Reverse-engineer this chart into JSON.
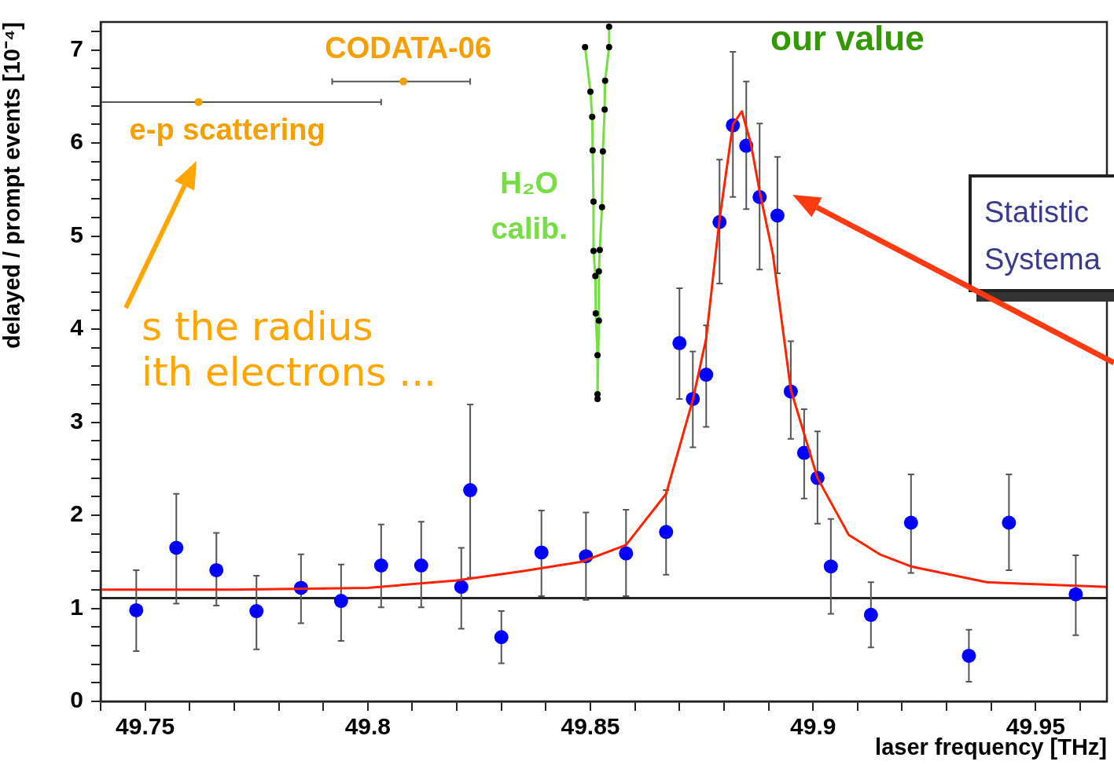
{
  "chart_data": {
    "type": "scatter",
    "xlabel": "laser frequency [THz]",
    "ylabel": "delayed / prompt events [10⁻⁴]",
    "xlim": [
      49.74,
      49.966
    ],
    "ylim": [
      0,
      7.3
    ],
    "xticks": [
      {
        "value": 49.74,
        "label": null
      },
      49.75,
      {
        "value": 49.76,
        "label": null
      },
      {
        "value": 49.77,
        "label": null
      },
      {
        "value": 49.78,
        "label": null
      },
      {
        "value": 49.79,
        "label": null
      },
      49.8,
      {
        "value": 49.81,
        "label": null
      },
      {
        "value": 49.82,
        "label": null
      },
      {
        "value": 49.83,
        "label": null
      },
      {
        "value": 49.84,
        "label": null
      },
      49.85,
      {
        "value": 49.86,
        "label": null
      },
      {
        "value": 49.87,
        "label": null
      },
      {
        "value": 49.88,
        "label": null
      },
      {
        "value": 49.89,
        "label": null
      },
      49.9,
      {
        "value": 49.91,
        "label": null
      },
      {
        "value": 49.92,
        "label": null
      },
      {
        "value": 49.93,
        "label": null
      },
      {
        "value": 49.94,
        "label": null
      },
      49.95,
      {
        "value": 49.96,
        "label": null
      }
    ],
    "yticks": [
      0,
      {
        "value": 0.2,
        "label": null
      },
      {
        "value": 0.4,
        "label": null
      },
      {
        "value": 0.6,
        "label": null
      },
      {
        "value": 0.8,
        "label": null
      },
      1,
      {
        "value": 1.2,
        "label": null
      },
      {
        "value": 1.4,
        "label": null
      },
      {
        "value": 1.6,
        "label": null
      },
      {
        "value": 1.8,
        "label": null
      },
      2,
      {
        "value": 2.2,
        "label": null
      },
      {
        "value": 2.4,
        "label": null
      },
      {
        "value": 2.6,
        "label": null
      },
      {
        "value": 2.8,
        "label": null
      },
      3,
      {
        "value": 3.2,
        "label": null
      },
      {
        "value": 3.4,
        "label": null
      },
      {
        "value": 3.6,
        "label": null
      },
      {
        "value": 3.8,
        "label": null
      },
      4,
      {
        "value": 4.2,
        "label": null
      },
      {
        "value": 4.4,
        "label": null
      },
      {
        "value": 4.6,
        "label": null
      },
      {
        "value": 4.8,
        "label": null
      },
      5,
      {
        "value": 5.2,
        "label": null
      },
      {
        "value": 5.4,
        "label": null
      },
      {
        "value": 5.6,
        "label": null
      },
      {
        "value": 5.8,
        "label": null
      },
      6,
      {
        "value": 6.2,
        "label": null
      },
      {
        "value": 6.4,
        "label": null
      },
      {
        "value": 6.6,
        "label": null
      },
      {
        "value": 6.8,
        "label": null
      },
      7,
      {
        "value": 7.2,
        "label": null
      }
    ],
    "grid": false,
    "legend": false,
    "marker": "circle",
    "ref_lines": [
      {
        "axis": "y",
        "value": 1.11,
        "color": "#222222"
      }
    ],
    "annotations": [
      "s the radius",
      "ith electrons ...",
      "our value",
      "Statistic",
      "Systema"
    ],
    "series": [
      {
        "color": "#0000ff",
        "x": [
          49.748,
          49.757,
          49.766,
          49.775,
          49.785,
          49.794,
          49.803,
          49.812,
          49.821,
          49.823,
          49.83,
          49.839,
          49.849,
          49.858,
          49.867,
          49.87,
          49.873,
          49.876,
          49.879,
          49.882,
          49.885,
          49.888,
          49.892,
          49.895,
          49.898,
          49.901,
          49.904,
          49.913,
          49.922,
          49.935,
          49.944,
          49.959
        ],
        "values": [
          0.98,
          1.65,
          1.41,
          0.97,
          1.22,
          1.08,
          1.46,
          1.46,
          1.23,
          2.27,
          0.69,
          1.6,
          1.56,
          1.59,
          1.82,
          3.85,
          3.25,
          3.51,
          5.15,
          6.19,
          5.97,
          5.42,
          5.22,
          3.33,
          2.67,
          2.4,
          1.45,
          0.93,
          1.92,
          0.49,
          1.92,
          1.15
        ],
        "errors": [
          [
            0.54,
            1.41
          ],
          [
            1.05,
            2.23
          ],
          [
            1.03,
            1.81
          ],
          [
            0.56,
            1.35
          ],
          [
            0.84,
            1.58
          ],
          [
            0.65,
            1.47
          ],
          [
            1.01,
            1.9
          ],
          [
            1.01,
            1.93
          ],
          [
            0.78,
            1.65
          ],
          [
            1.33,
            3.19
          ],
          [
            0.41,
            0.97
          ],
          [
            1.13,
            2.05
          ],
          [
            1.09,
            2.03
          ],
          [
            1.13,
            2.06
          ],
          [
            1.36,
            2.27
          ],
          [
            3.25,
            4.44
          ],
          [
            2.73,
            3.76
          ],
          [
            2.95,
            4.04
          ],
          [
            4.49,
            5.82
          ],
          [
            5.42,
            6.98
          ],
          [
            5.29,
            6.66
          ],
          [
            4.64,
            6.21
          ],
          [
            4.6,
            5.85
          ],
          [
            2.82,
            3.87
          ],
          [
            2.18,
            3.14
          ],
          [
            1.91,
            2.9
          ],
          [
            0.94,
            1.96
          ],
          [
            0.58,
            1.28
          ],
          [
            1.38,
            2.44
          ],
          [
            0.21,
            0.77
          ],
          [
            1.41,
            2.44
          ],
          [
            0.71,
            1.57
          ]
        ]
      },
      {
        "type": "line",
        "color": "#ff2200",
        "marker": "none",
        "x": [
          49.74,
          49.77,
          49.8,
          49.82,
          49.835,
          49.848,
          49.858,
          49.867,
          49.873,
          49.876,
          49.879,
          49.882,
          49.884,
          49.886,
          49.888,
          49.891,
          49.895,
          49.901,
          49.908,
          49.915,
          49.922,
          49.939,
          49.966
        ],
        "values": [
          1.2,
          1.2,
          1.22,
          1.3,
          1.4,
          1.5,
          1.68,
          2.23,
          3.24,
          3.9,
          5.18,
          6.2,
          6.34,
          6.0,
          5.48,
          4.8,
          3.35,
          2.4,
          1.79,
          1.58,
          1.45,
          1.28,
          1.23
        ]
      },
      {
        "type": "scatter",
        "name": "e-p scattering",
        "color": "#f5a000",
        "x": [
          49.762
        ],
        "values": [
          6.44
        ],
        "xerrors": [
          [
            49.74,
            49.803
          ]
        ]
      },
      {
        "type": "scatter",
        "name": "CODATA-06",
        "color": "#f5a000",
        "x": [
          49.808
        ],
        "values": [
          6.66
        ],
        "xerrors": [
          [
            49.792,
            49.823
          ]
        ]
      },
      {
        "type": "line",
        "name": "H₂O calib.",
        "color": "#77dd44",
        "marker": "none",
        "x": [
          49.8488,
          49.85,
          49.8504,
          49.8505,
          49.8507,
          49.8507,
          49.8511,
          49.8512,
          49.8516,
          49.8516,
          49.853,
          49.8542,
          49.8542,
          49.8533,
          49.8532,
          49.8528,
          49.8526,
          49.8521,
          49.8519,
          49.8519,
          49.8516
        ],
        "values": [
          7.03,
          6.55,
          6.28,
          5.92,
          5.37,
          4.84,
          4.57,
          4.17,
          3.72,
          3.25,
          null,
          7.25,
          7.03,
          6.67,
          6.36,
          5.91,
          5.31,
          4.85,
          4.62,
          4.09,
          3.3
        ]
      },
      {
        "type": "scatter",
        "color": "#000000",
        "x": [
          49.8488,
          49.85,
          49.8504,
          49.8505,
          49.8507,
          49.8507,
          49.8511,
          49.8512,
          49.8516,
          49.8516,
          49.8542,
          49.8542,
          49.8533,
          49.8532,
          49.8528,
          49.8526,
          49.8521,
          49.8519,
          49.8519,
          49.8516
        ],
        "values": [
          7.03,
          6.55,
          6.28,
          5.92,
          5.37,
          4.84,
          4.57,
          4.17,
          3.72,
          3.25,
          7.25,
          7.03,
          6.67,
          6.36,
          5.91,
          5.31,
          4.85,
          4.62,
          4.09,
          3.3
        ]
      }
    ]
  }
}
